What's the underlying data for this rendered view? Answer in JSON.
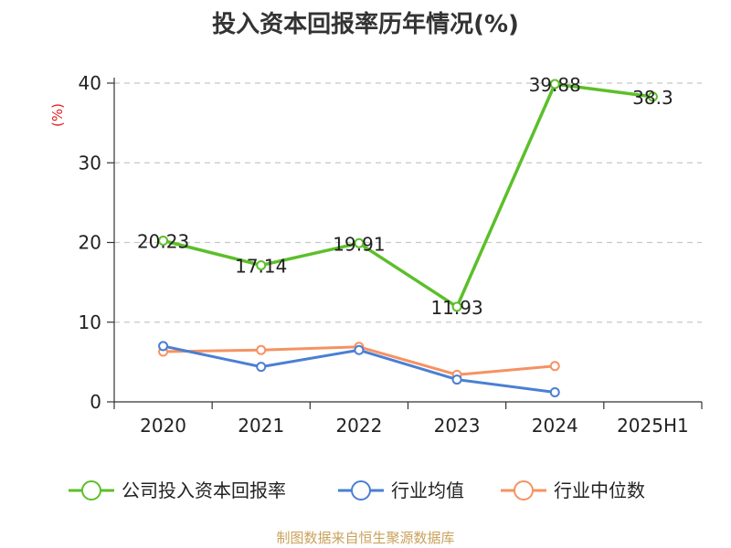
{
  "title": "投入资本回报率历年情况(%)",
  "source": "制图数据来自恒生聚源数据库",
  "colors": {
    "company": "#5cbf2a",
    "industry_avg": "#4a7fd4",
    "industry_median": "#f59262",
    "grid": "#c8c8c8",
    "axis": "#333333",
    "ylabel": "#e02020"
  },
  "chart_data": {
    "type": "line",
    "title": "投入资本回报率历年情况(%)",
    "xlabel": "",
    "ylabel": "(%)",
    "ylim": [
      0,
      40
    ],
    "yticks": [
      0,
      10,
      20,
      30,
      40
    ],
    "grid": true,
    "legend_position": "bottom",
    "categories": [
      "2020",
      "2021",
      "2022",
      "2023",
      "2024",
      "2025H1"
    ],
    "series": [
      {
        "name": "公司投入资本回报率",
        "color_key": "company",
        "values": [
          20.23,
          17.14,
          19.91,
          11.93,
          39.88,
          38.3
        ],
        "labels": [
          "20.23",
          "17.14",
          "19.91",
          "11.93",
          "39.88",
          "38.3"
        ]
      },
      {
        "name": "行业均值",
        "color_key": "industry_avg",
        "values": [
          7.0,
          4.4,
          6.5,
          2.8,
          1.2,
          null
        ]
      },
      {
        "name": "行业中位数",
        "color_key": "industry_median",
        "values": [
          6.3,
          6.5,
          6.9,
          3.4,
          4.5,
          null
        ]
      }
    ]
  }
}
